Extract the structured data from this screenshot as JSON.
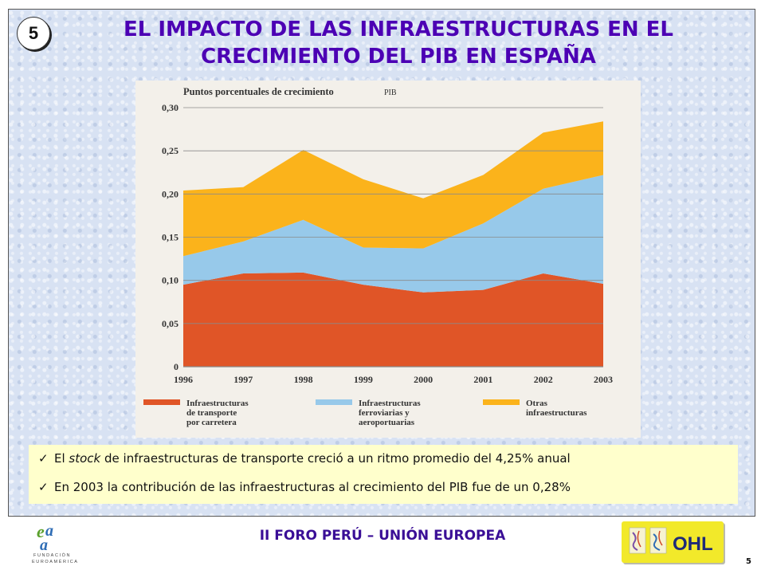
{
  "slide": {
    "badge": "5",
    "title_line1": "EL IMPACTO DE LAS INFRAESTRUCTURAS EN EL",
    "title_line2": "CRECIMIENTO DEL PIB EN ESPAÑA"
  },
  "chart_data": {
    "type": "area",
    "stacked": true,
    "ylabel": "Puntos porcentuales de crecimiento",
    "ylabel_suffix": "PIB",
    "x": [
      "1996",
      "1997",
      "1998",
      "1999",
      "2000",
      "2001",
      "2002",
      "2003"
    ],
    "ylim": [
      0,
      0.3
    ],
    "yticks": [
      "0",
      "0,05",
      "0,10",
      "0,15",
      "0,20",
      "0,25",
      "0,30"
    ],
    "ytick_values": [
      0,
      0.05,
      0.1,
      0.15,
      0.2,
      0.25,
      0.3
    ],
    "grid": true,
    "legend_position": "bottom",
    "series": [
      {
        "name": [
          "Infraestructuras",
          "de transporte",
          "por carretera"
        ],
        "color": "#e05527",
        "values": [
          0.095,
          0.108,
          0.109,
          0.095,
          0.086,
          0.089,
          0.108,
          0.096
        ]
      },
      {
        "name": [
          "Infraestructuras",
          "ferroviarias y",
          "aeroportuarias"
        ],
        "color": "#97c9ea",
        "values": [
          0.033,
          0.037,
          0.061,
          0.043,
          0.051,
          0.077,
          0.098,
          0.126
        ]
      },
      {
        "name": [
          "Otras",
          "infraestructuras"
        ],
        "color": "#fbb31b",
        "values": [
          0.076,
          0.063,
          0.081,
          0.079,
          0.058,
          0.056,
          0.065,
          0.062
        ]
      }
    ]
  },
  "bullets": {
    "b1_pre": "El ",
    "b1_em": "stock",
    "b1_post": " de infraestructuras de transporte creció a un ritmo promedio del 4,25% anual",
    "b2": "En 2003 la contribución de las infraestructuras al crecimiento del PIB fue de un 0,28%"
  },
  "footer": {
    "title": "II FORO PERÚ – UNIÓN EUROPEA",
    "logo_org_line1": "FUNDACIÓN",
    "logo_org_line2": "EUROAMÉRICA",
    "partner_logo_text": "OHL",
    "page_number": "5"
  },
  "colors": {
    "title": "#4c00b4",
    "road": "#e05527",
    "rail_air": "#97c9ea",
    "other": "#fbb31b",
    "bullet_bg": "#ffffcc"
  }
}
